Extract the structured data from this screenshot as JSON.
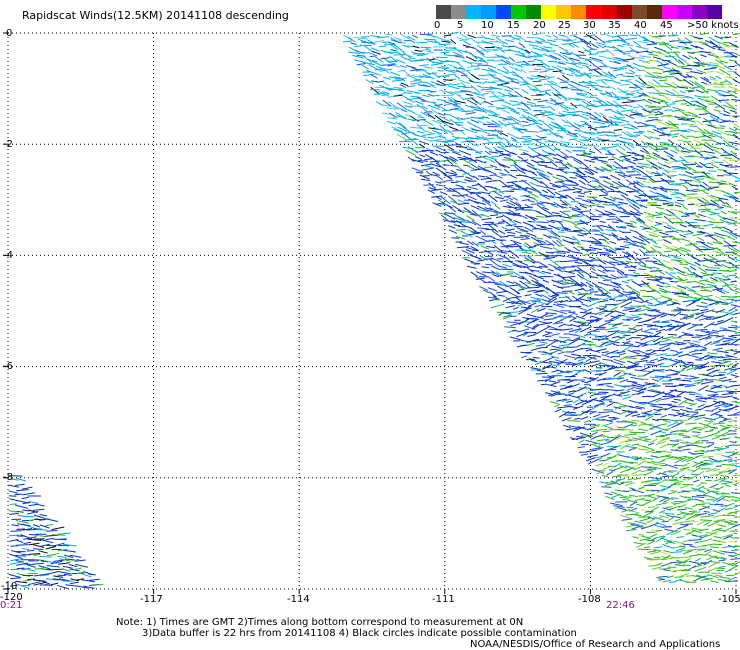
{
  "title": "Rapidscat Winds(12.5KM) 20141108 descending",
  "legend": {
    "labels": [
      "0",
      "5",
      "10",
      "15",
      "20",
      "25",
      "30",
      "35",
      "40",
      "45",
      ">50 knots"
    ],
    "colors": [
      "#4a4a4a",
      "#8c8c8c",
      "#00b4ff",
      "#009cff",
      "#0048ff",
      "#00c800",
      "#008c00",
      "#ffff00",
      "#ffc800",
      "#ff8c00",
      "#ff0000",
      "#e00000",
      "#a00000",
      "#7a4a2a",
      "#5a2a0a",
      "#ff00ff",
      "#c800ff",
      "#8c00c8",
      "#5a00a0"
    ]
  },
  "axes": {
    "x_ticks": [
      "-120",
      "-117",
      "-114",
      "-111",
      "-108",
      "-105"
    ],
    "y_ticks": [
      "0",
      "-2",
      "-4",
      "-6",
      "-8",
      "-10"
    ]
  },
  "times": {
    "left": "0:21",
    "right": "22:46"
  },
  "notes": {
    "line1": "Note: 1) Times are GMT 2)Times along bottom correspond to measurement at 0N",
    "line2": "3)Data buffer is 22 hrs from 20141108 4) Black circles indicate possible contamination",
    "line3": "NOAA/NESDIS/Office of Research and Applications"
  },
  "map": {
    "lon_range": [
      -120,
      -105
    ],
    "lat_range": [
      -10,
      0
    ],
    "wind_colors": [
      "#0033cc",
      "#1f4fe6",
      "#00aaee",
      "#33c8f0",
      "#22bb22",
      "#66cc33",
      "#99dd44",
      "#dddd55",
      "#111111"
    ]
  }
}
